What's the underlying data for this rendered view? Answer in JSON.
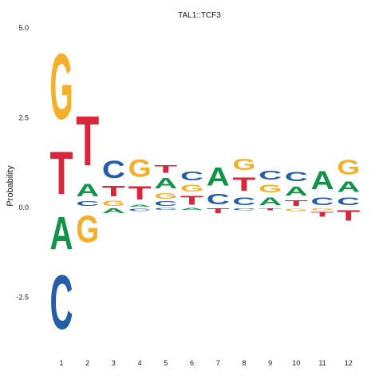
{
  "chart_data": {
    "type": "sequence-logo",
    "title": "TAL1::TCF3",
    "ylabel": "Probability",
    "xlabel": "",
    "ylim": [
      -3.9,
      5.0
    ],
    "yticks": [
      5.0,
      2.5,
      0.0,
      -2.5
    ],
    "ytick_labels": [
      "5.0",
      "2.5",
      "0.0",
      "-2.5"
    ],
    "categories": [
      "1",
      "2",
      "3",
      "4",
      "5",
      "6",
      "7",
      "8",
      "9",
      "10",
      "11",
      "12"
    ],
    "letter_colors": {
      "A": "#0f9448",
      "C": "#255ea8",
      "G": "#f5b02b",
      "T": "#d8263a"
    },
    "positions": [
      {
        "pos": "1",
        "above": [
          [
            "T",
            1.9
          ],
          [
            "G",
            2.9
          ]
        ],
        "below": [
          [
            "A",
            1.45
          ],
          [
            "C",
            2.4
          ]
        ]
      },
      {
        "pos": "2",
        "above": [
          [
            "C",
            0.2
          ],
          [
            "A",
            0.55
          ],
          [
            "T",
            2.2
          ]
        ],
        "below": [
          [
            "G",
            1.2
          ]
        ]
      },
      {
        "pos": "3",
        "above": [
          [
            "G",
            0.22
          ],
          [
            "T",
            0.45
          ],
          [
            "C",
            0.78
          ]
        ],
        "below": [
          [
            "A",
            0.2
          ]
        ]
      },
      {
        "pos": "4",
        "above": [
          [
            "A",
            0.1
          ],
          [
            "T",
            0.6
          ],
          [
            "G",
            0.78
          ]
        ],
        "below": [
          [
            "C",
            0.12
          ]
        ]
      },
      {
        "pos": "5",
        "above": [
          [
            "C",
            0.2
          ],
          [
            "G",
            0.25
          ],
          [
            "A",
            0.45
          ],
          [
            "T",
            0.35
          ]
        ],
        "below": [
          [
            "C",
            0.08
          ]
        ]
      },
      {
        "pos": "6",
        "above": [
          [
            "T",
            0.38
          ],
          [
            "G",
            0.3
          ],
          [
            "C",
            0.4
          ]
        ],
        "below": [
          [
            "A",
            0.08
          ]
        ]
      },
      {
        "pos": "7",
        "above": [
          [
            "C",
            0.45
          ],
          [
            "A",
            0.8
          ]
        ],
        "below": [
          [
            "T",
            0.2
          ]
        ]
      },
      {
        "pos": "8",
        "above": [
          [
            "C",
            0.35
          ],
          [
            "T",
            0.6
          ],
          [
            "G",
            0.5
          ]
        ],
        "below": [
          [
            "C",
            0.1
          ]
        ]
      },
      {
        "pos": "9",
        "above": [
          [
            "A",
            0.35
          ],
          [
            "G",
            0.35
          ],
          [
            "C",
            0.4
          ]
        ],
        "below": [
          [
            "T",
            0.1
          ]
        ]
      },
      {
        "pos": "10",
        "above": [
          [
            "T",
            0.25
          ],
          [
            "A",
            0.4
          ],
          [
            "C",
            0.42
          ]
        ],
        "below": [
          [
            "G",
            0.12
          ]
        ]
      },
      {
        "pos": "11",
        "above": [
          [
            "C",
            0.35
          ],
          [
            "A",
            0.8
          ]
        ],
        "below": [
          [
            "G",
            0.1
          ],
          [
            "T",
            0.2
          ]
        ]
      },
      {
        "pos": "12",
        "above": [
          [
            "C",
            0.35
          ],
          [
            "A",
            0.45
          ],
          [
            "G",
            0.65
          ]
        ],
        "below": [
          [
            "T",
            0.45
          ]
        ]
      }
    ]
  }
}
